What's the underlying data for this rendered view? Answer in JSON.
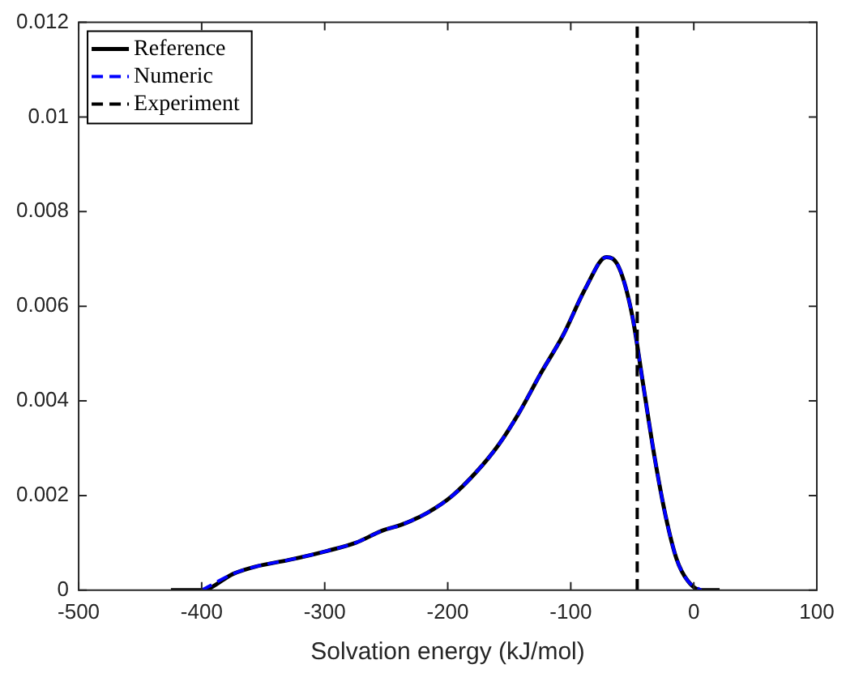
{
  "chart_data": {
    "type": "line",
    "xlabel": "Solvation energy (kJ/mol)",
    "xlim": [
      -500,
      100
    ],
    "xticks": [
      -500,
      -400,
      -300,
      -200,
      -100,
      0,
      100
    ],
    "ylim": [
      0,
      0.012
    ],
    "yticks": [
      0,
      0.002,
      0.004,
      0.006,
      0.008,
      0.01,
      0.012
    ],
    "grid": false,
    "legend": "top left",
    "marker": "none",
    "x": [
      -425,
      -400,
      -374,
      -356,
      -329,
      -298,
      -275,
      -253,
      -238,
      -217,
      -197,
      -177,
      -159,
      -142,
      -124,
      -106,
      -88,
      -71,
      -61,
      -50,
      -41,
      -32,
      -23,
      -14,
      -5,
      6,
      21
    ],
    "series": [
      {
        "name": "Reference",
        "color": "#000000",
        "line_style": "solid",
        "values": [
          0,
          0,
          0.00035,
          0.0005,
          0.00064,
          0.00083,
          0.001,
          0.00126,
          0.00138,
          0.00163,
          0.00198,
          0.00249,
          0.00306,
          0.00375,
          0.0046,
          0.0054,
          0.00638,
          0.00704,
          0.00683,
          0.0058,
          0.00432,
          0.00283,
          0.00158,
          0.00066,
          0.0002,
          0,
          0
        ]
      },
      {
        "name": "Numeric",
        "color": "#0000ff",
        "line_style": "dashed",
        "values": [
          null,
          0,
          0.00035,
          0.0005,
          0.00064,
          0.00083,
          0.001,
          0.00126,
          0.00138,
          0.00163,
          0.00198,
          0.00249,
          0.00306,
          0.00375,
          0.0046,
          0.0054,
          0.00638,
          0.00704,
          0.00683,
          0.0058,
          0.00432,
          0.00283,
          0.00158,
          0.00066,
          0.0002,
          0,
          null
        ]
      },
      {
        "name": "Experiment",
        "color": "#000000",
        "line_style": "dashed",
        "x": [
          -46,
          -46
        ],
        "values": [
          0,
          0.012
        ]
      }
    ]
  }
}
